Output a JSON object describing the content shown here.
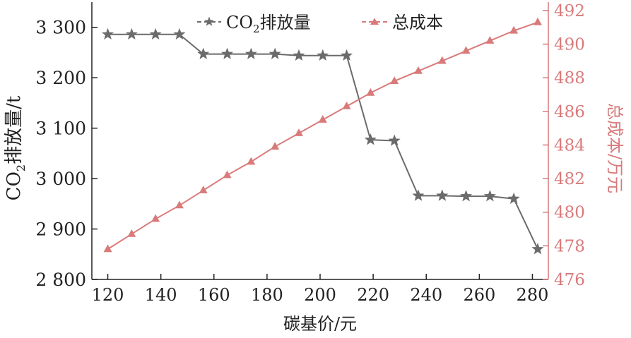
{
  "colors": {
    "co2": "#6b6b6b",
    "cost": "#d97a7a",
    "axis_left": "#222222",
    "axis_right": "#d97a7a"
  },
  "legend": {
    "co2_prefix": "CO",
    "co2_sub": "2",
    "co2_suffix": "排放量",
    "cost": "总成本"
  },
  "axis_labels": {
    "left_prefix": "CO",
    "left_sub": "2",
    "left_suffix": "排放量/t",
    "right": "总成本/万元",
    "bottom": "碳基价/元"
  },
  "chart_data": {
    "type": "line",
    "xlabel": "碳基价/元",
    "ylabel": "CO2排放量/t",
    "y2label": "总成本/万元",
    "xlim": [
      114,
      286
    ],
    "ylim": [
      2800,
      3350
    ],
    "y2lim": [
      476,
      492.5
    ],
    "x_ticks": [
      120,
      140,
      160,
      180,
      200,
      220,
      240,
      260,
      280
    ],
    "x_tick_labels": [
      "120",
      "140",
      "160",
      "180",
      "200",
      "220",
      "240",
      "260",
      "280"
    ],
    "y_ticks": [
      2800,
      2900,
      3000,
      3100,
      3200,
      3300
    ],
    "y_tick_labels": [
      "2 800",
      "2 900",
      "3 000",
      "3 100",
      "3 200",
      "3 300"
    ],
    "y2_ticks": [
      476,
      478,
      480,
      482,
      484,
      486,
      488,
      490,
      492
    ],
    "y2_tick_labels": [
      "476",
      "478",
      "480",
      "482",
      "484",
      "486",
      "488",
      "490",
      "492"
    ],
    "x": [
      120,
      129,
      138,
      147,
      156,
      165,
      174,
      183,
      192,
      201,
      210,
      219,
      228,
      237,
      246,
      255,
      264,
      273,
      282
    ],
    "series": [
      {
        "name": "CO2排放量",
        "axis": "left",
        "marker": "star",
        "values": [
          3286,
          3286,
          3286,
          3286,
          3247,
          3247,
          3247,
          3247,
          3244,
          3244,
          3244,
          3077,
          3075,
          2966,
          2966,
          2965,
          2965,
          2960,
          2860
        ]
      },
      {
        "name": "总成本",
        "axis": "right",
        "marker": "triangle",
        "values": [
          477.8,
          478.7,
          479.6,
          480.4,
          481.3,
          482.2,
          483.0,
          483.9,
          484.7,
          485.5,
          486.3,
          487.1,
          487.8,
          488.4,
          489.0,
          489.6,
          490.2,
          490.8,
          491.3
        ]
      }
    ],
    "legend_position": "top-center",
    "grid": false
  }
}
